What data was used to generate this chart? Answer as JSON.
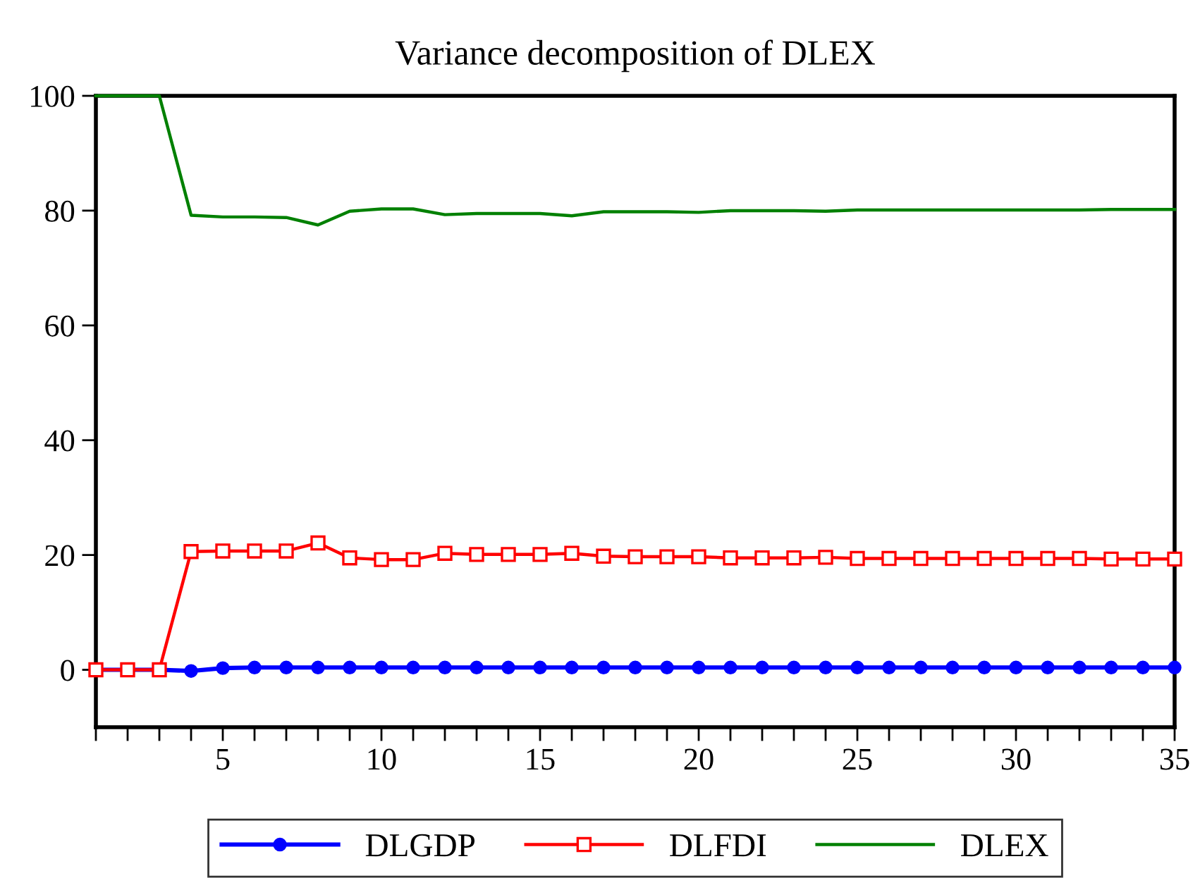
{
  "chart_data": {
    "type": "line",
    "title": "Variance decomposition of DLEX",
    "x": [
      1,
      2,
      3,
      4,
      5,
      6,
      7,
      8,
      9,
      10,
      11,
      12,
      13,
      14,
      15,
      16,
      17,
      18,
      19,
      20,
      21,
      22,
      23,
      24,
      25,
      26,
      27,
      28,
      29,
      30,
      31,
      32,
      33,
      34,
      35
    ],
    "series": [
      {
        "name": "DLGDP",
        "color": "#0000ff",
        "marker": "circle",
        "values": [
          0,
          0,
          0,
          -0.2,
          0.3,
          0.4,
          0.4,
          0.4,
          0.4,
          0.4,
          0.4,
          0.4,
          0.4,
          0.4,
          0.4,
          0.4,
          0.4,
          0.4,
          0.4,
          0.4,
          0.4,
          0.4,
          0.4,
          0.4,
          0.4,
          0.4,
          0.4,
          0.4,
          0.4,
          0.4,
          0.4,
          0.4,
          0.4,
          0.4,
          0.4
        ]
      },
      {
        "name": "DLFDI",
        "color": "#ff0000",
        "marker": "square",
        "values": [
          0,
          0,
          0,
          20.6,
          20.7,
          20.7,
          20.7,
          22.1,
          19.5,
          19.2,
          19.2,
          20.3,
          20.1,
          20.1,
          20.1,
          20.3,
          19.8,
          19.7,
          19.7,
          19.7,
          19.5,
          19.5,
          19.5,
          19.6,
          19.4,
          19.4,
          19.4,
          19.4,
          19.4,
          19.4,
          19.4,
          19.4,
          19.3,
          19.3,
          19.3
        ]
      },
      {
        "name": "DLEX",
        "color": "#008000",
        "marker": "none",
        "values": [
          100,
          100,
          100,
          79.2,
          78.9,
          78.9,
          78.8,
          77.5,
          79.9,
          80.3,
          80.3,
          79.3,
          79.5,
          79.5,
          79.5,
          79.1,
          79.8,
          79.8,
          79.8,
          79.7,
          80,
          80,
          80,
          79.9,
          80.1,
          80.1,
          80.1,
          80.1,
          80.1,
          80.1,
          80.1,
          80.1,
          80.2,
          80.2,
          80.2
        ]
      }
    ],
    "xlim": [
      1,
      35
    ],
    "xticks": [
      {
        "value": 1,
        "label": null
      },
      {
        "value": 2,
        "label": null
      },
      {
        "value": 3,
        "label": null
      },
      {
        "value": 4,
        "label": null
      },
      5,
      {
        "value": 6,
        "label": null
      },
      {
        "value": 7,
        "label": null
      },
      {
        "value": 8,
        "label": null
      },
      {
        "value": 9,
        "label": null
      },
      10,
      {
        "value": 11,
        "label": null
      },
      {
        "value": 12,
        "label": null
      },
      {
        "value": 13,
        "label": null
      },
      {
        "value": 14,
        "label": null
      },
      15,
      {
        "value": 16,
        "label": null
      },
      {
        "value": 17,
        "label": null
      },
      {
        "value": 18,
        "label": null
      },
      {
        "value": 19,
        "label": null
      },
      20,
      {
        "value": 21,
        "label": null
      },
      {
        "value": 22,
        "label": null
      },
      {
        "value": 23,
        "label": null
      },
      {
        "value": 24,
        "label": null
      },
      25,
      {
        "value": 26,
        "label": null
      },
      {
        "value": 27,
        "label": null
      },
      {
        "value": 28,
        "label": null
      },
      {
        "value": 29,
        "label": null
      },
      30,
      {
        "value": 31,
        "label": null
      },
      {
        "value": 32,
        "label": null
      },
      {
        "value": 33,
        "label": null
      },
      {
        "value": 34,
        "label": null
      },
      35
    ],
    "ylim": [
      -10,
      100
    ],
    "yticks": [
      0,
      20,
      40,
      60,
      80,
      100
    ],
    "grid": false,
    "legend": "bottom",
    "line_style": "solid"
  }
}
